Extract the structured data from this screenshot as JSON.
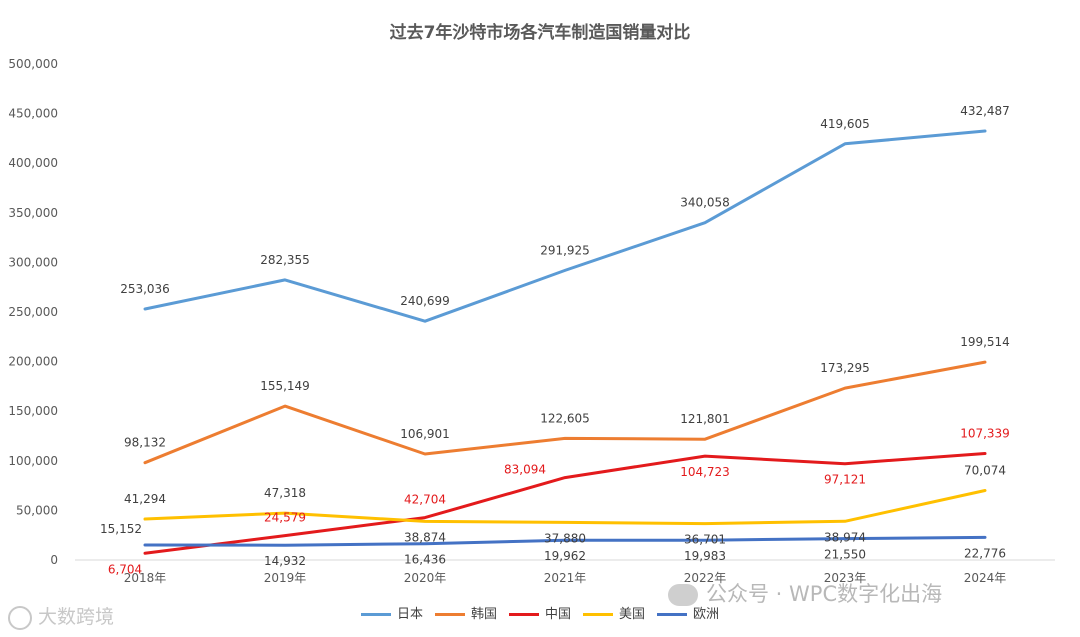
{
  "chart_data": {
    "type": "line",
    "title": "过去7年沙特市场各汽车制造国销量对比",
    "categories": [
      "2018年",
      "2019年",
      "2020年",
      "2021年",
      "2022年",
      "2023年",
      "2024年"
    ],
    "ylim": [
      0,
      500000
    ],
    "yticks": [
      0,
      50000,
      100000,
      150000,
      200000,
      250000,
      300000,
      350000,
      400000,
      450000,
      500000
    ],
    "ytick_labels": [
      "0",
      "50,000",
      "100,000",
      "150,000",
      "200,000",
      "250,000",
      "300,000",
      "350,000",
      "400,000",
      "450,000",
      "500,000"
    ],
    "grid": false,
    "legend_position": "bottom",
    "series": [
      {
        "name": "日本",
        "color": "#5b9bd5",
        "values": [
          253036,
          282355,
          240699,
          291925,
          340058,
          419605,
          432487
        ],
        "labels": [
          "253,036",
          "282,355",
          "240,699",
          "291,925",
          "340,058",
          "419,605",
          "432,487"
        ],
        "label_color": "#404040"
      },
      {
        "name": "韩国",
        "color": "#ed7d31",
        "values": [
          98132,
          155149,
          106901,
          122605,
          121801,
          173295,
          199514
        ],
        "labels": [
          "98,132",
          "155,149",
          "106,901",
          "122,605",
          "121,801",
          "173,295",
          "199,514"
        ],
        "label_color": "#404040"
      },
      {
        "name": "中国",
        "color": "#e31a1c",
        "values": [
          6704,
          24579,
          42704,
          83094,
          104723,
          97121,
          107339
        ],
        "labels": [
          "6,704",
          "24,579",
          "42,704",
          "83,094",
          "104,723",
          "97,121",
          "107,339"
        ],
        "label_color": "#e31a1c"
      },
      {
        "name": "美国",
        "color": "#ffc000",
        "values": [
          41294,
          47318,
          38874,
          37880,
          36701,
          38974,
          70074
        ],
        "labels": [
          "41,294",
          "47,318",
          "38,874",
          "37,880",
          "36,701",
          "38,974",
          "70,074"
        ],
        "label_color": "#404040"
      },
      {
        "name": "欧洲",
        "color": "#4472c4",
        "values": [
          15152,
          14932,
          16436,
          19962,
          19983,
          21550,
          22776
        ],
        "labels": [
          "15,152",
          "14,932",
          "16,436",
          "19,962",
          "19,983",
          "21,550",
          "22,776"
        ],
        "label_color": "#404040"
      }
    ]
  },
  "watermarks": {
    "left": "大数跨境",
    "right": "公众号 · WPC数字化出海"
  }
}
